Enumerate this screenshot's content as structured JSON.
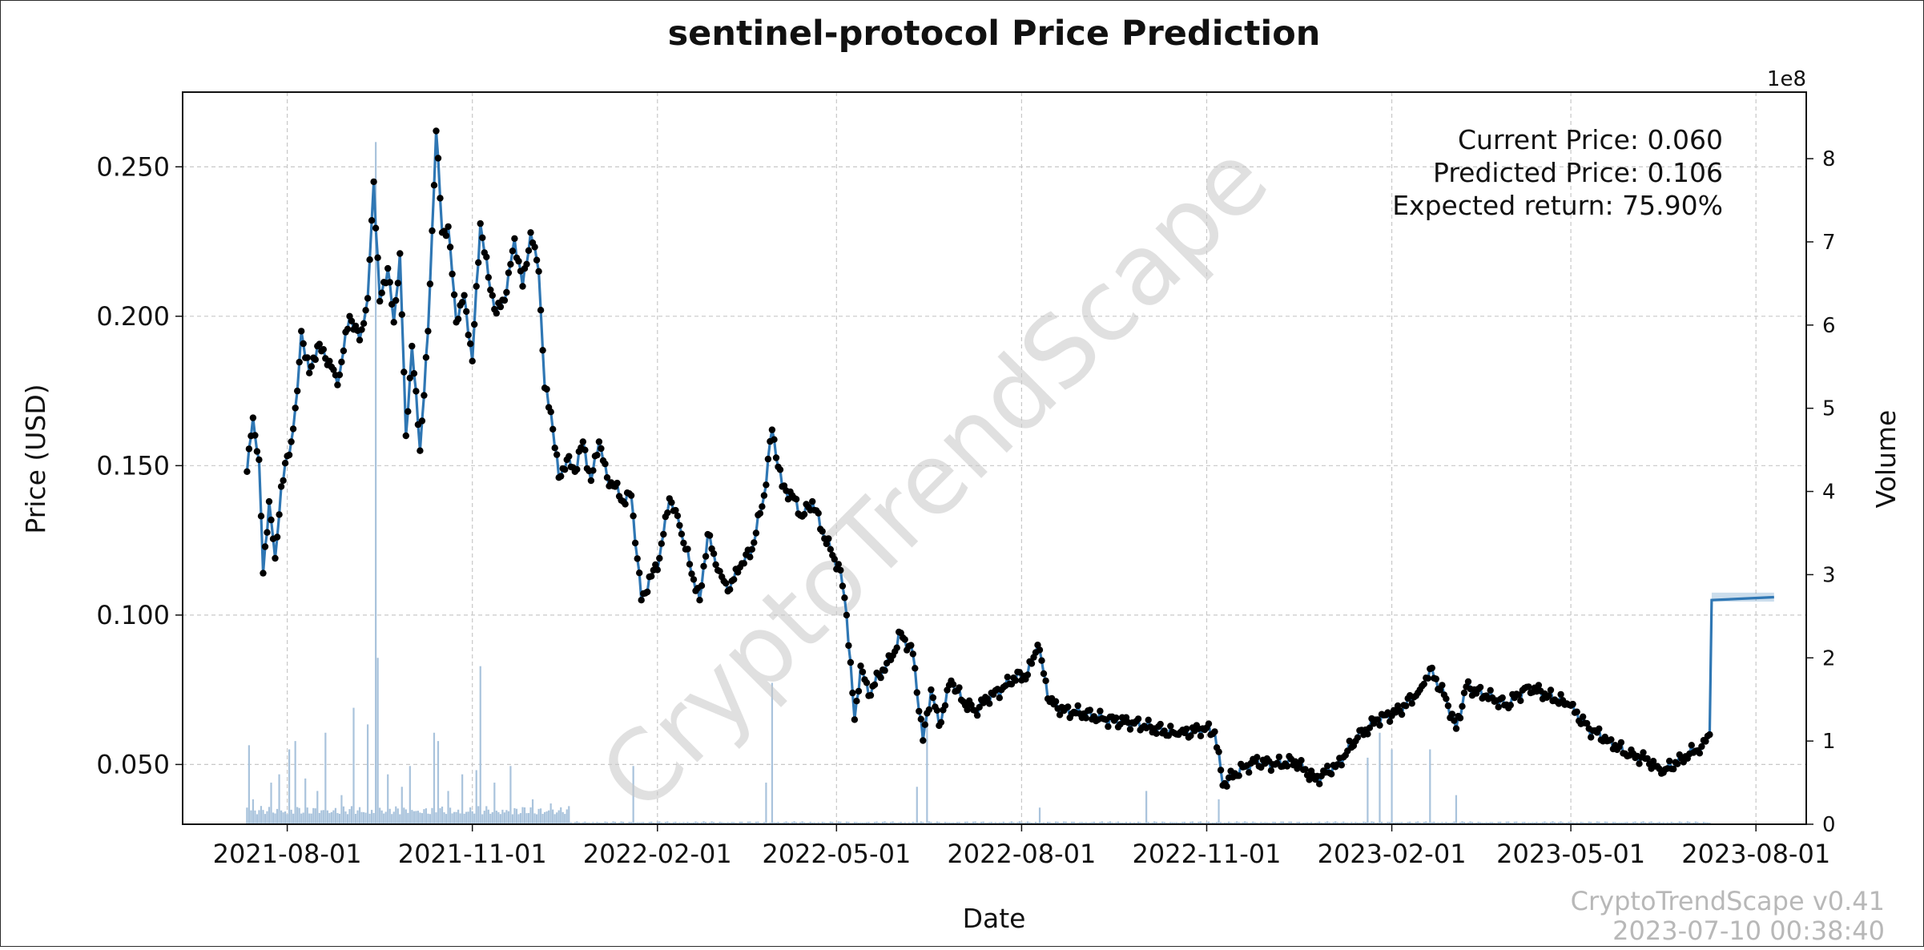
{
  "chart_data": {
    "type": "line",
    "title": "sentinel-protocol Price Prediction",
    "xlabel": "Date",
    "ylabel": "Price (USD)",
    "y2label": "Volume",
    "y2_multiplier": "1e8",
    "x_ticks": [
      "2021-08-01",
      "2021-11-01",
      "2022-02-01",
      "2022-05-01",
      "2022-08-01",
      "2022-11-01",
      "2023-02-01",
      "2023-05-01",
      "2023-08-01"
    ],
    "y_ticks": [
      "0.050",
      "0.100",
      "0.150",
      "0.200",
      "0.250"
    ],
    "y2_ticks": [
      "0",
      "1",
      "2",
      "3",
      "4",
      "5",
      "6",
      "7",
      "8"
    ],
    "xlim": [
      "2021-06-10",
      "2023-08-26"
    ],
    "ylim": [
      0.03,
      0.275
    ],
    "y2lim": [
      0,
      8.8
    ],
    "grid": true,
    "info": {
      "current_price": "Current Price: 0.060",
      "predicted_price": "Predicted Price: 0.106",
      "expected_return": "Expected return: 75.90%"
    },
    "watermark": "CryptoTrendScape",
    "footer": {
      "version": "CryptoTrendScape v0.41",
      "timestamp": "2023-07-10 00:38:40"
    },
    "colors": {
      "line": "#2f77b4",
      "points": "#000000",
      "volume": "#a9c3dc",
      "grid": "#c8c8c8"
    },
    "series": [
      {
        "type": "line_with_points",
        "anchors": [
          [
            "2021-07-12",
            0.148
          ],
          [
            "2021-07-15",
            0.166
          ],
          [
            "2021-07-18",
            0.152
          ],
          [
            "2021-07-20",
            0.114
          ],
          [
            "2021-07-23",
            0.138
          ],
          [
            "2021-07-26",
            0.119
          ],
          [
            "2021-07-29",
            0.143
          ],
          [
            "2021-08-03",
            0.158
          ],
          [
            "2021-08-06",
            0.175
          ],
          [
            "2021-08-08",
            0.195
          ],
          [
            "2021-08-12",
            0.181
          ],
          [
            "2021-08-16",
            0.19
          ],
          [
            "2021-08-22",
            0.185
          ],
          [
            "2021-08-26",
            0.177
          ],
          [
            "2021-09-01",
            0.2
          ],
          [
            "2021-09-06",
            0.192
          ],
          [
            "2021-09-10",
            0.206
          ],
          [
            "2021-09-13",
            0.245
          ],
          [
            "2021-09-16",
            0.205
          ],
          [
            "2021-09-20",
            0.216
          ],
          [
            "2021-09-23",
            0.198
          ],
          [
            "2021-09-26",
            0.221
          ],
          [
            "2021-09-29",
            0.16
          ],
          [
            "2021-10-02",
            0.19
          ],
          [
            "2021-10-06",
            0.155
          ],
          [
            "2021-10-10",
            0.195
          ],
          [
            "2021-10-14",
            0.262
          ],
          [
            "2021-10-17",
            0.228
          ],
          [
            "2021-10-20",
            0.23
          ],
          [
            "2021-10-24",
            0.198
          ],
          [
            "2021-10-28",
            0.207
          ],
          [
            "2021-11-01",
            0.185
          ],
          [
            "2021-11-05",
            0.231
          ],
          [
            "2021-11-09",
            0.213
          ],
          [
            "2021-11-13",
            0.201
          ],
          [
            "2021-11-18",
            0.208
          ],
          [
            "2021-11-22",
            0.226
          ],
          [
            "2021-11-26",
            0.21
          ],
          [
            "2021-11-30",
            0.228
          ],
          [
            "2021-12-04",
            0.215
          ],
          [
            "2021-12-07",
            0.176
          ],
          [
            "2021-12-10",
            0.168
          ],
          [
            "2021-12-14",
            0.146
          ],
          [
            "2021-12-18",
            0.152
          ],
          [
            "2021-12-22",
            0.148
          ],
          [
            "2021-12-26",
            0.158
          ],
          [
            "2021-12-30",
            0.145
          ],
          [
            "2022-01-03",
            0.158
          ],
          [
            "2022-01-07",
            0.146
          ],
          [
            "2022-01-11",
            0.143
          ],
          [
            "2022-01-15",
            0.138
          ],
          [
            "2022-01-19",
            0.14
          ],
          [
            "2022-01-24",
            0.105
          ],
          [
            "2022-01-29",
            0.113
          ],
          [
            "2022-02-02",
            0.119
          ],
          [
            "2022-02-07",
            0.139
          ],
          [
            "2022-02-12",
            0.13
          ],
          [
            "2022-02-17",
            0.117
          ],
          [
            "2022-02-22",
            0.105
          ],
          [
            "2022-02-26",
            0.127
          ],
          [
            "2022-03-03",
            0.115
          ],
          [
            "2022-03-08",
            0.108
          ],
          [
            "2022-03-14",
            0.116
          ],
          [
            "2022-03-20",
            0.122
          ],
          [
            "2022-03-26",
            0.14
          ],
          [
            "2022-03-30",
            0.162
          ],
          [
            "2022-04-04",
            0.143
          ],
          [
            "2022-04-09",
            0.14
          ],
          [
            "2022-04-14",
            0.133
          ],
          [
            "2022-04-19",
            0.138
          ],
          [
            "2022-04-24",
            0.128
          ],
          [
            "2022-04-29",
            0.12
          ],
          [
            "2022-05-03",
            0.115
          ],
          [
            "2022-05-06",
            0.1
          ],
          [
            "2022-05-10",
            0.065
          ],
          [
            "2022-05-13",
            0.083
          ],
          [
            "2022-05-17",
            0.073
          ],
          [
            "2022-05-22",
            0.08
          ],
          [
            "2022-05-28",
            0.085
          ],
          [
            "2022-06-02",
            0.094
          ],
          [
            "2022-06-08",
            0.087
          ],
          [
            "2022-06-13",
            0.058
          ],
          [
            "2022-06-17",
            0.075
          ],
          [
            "2022-06-21",
            0.063
          ],
          [
            "2022-06-27",
            0.078
          ],
          [
            "2022-07-03",
            0.071
          ],
          [
            "2022-07-09",
            0.068
          ],
          [
            "2022-07-15",
            0.072
          ],
          [
            "2022-07-22",
            0.075
          ],
          [
            "2022-07-28",
            0.079
          ],
          [
            "2022-08-04",
            0.08
          ],
          [
            "2022-08-09",
            0.09
          ],
          [
            "2022-08-15",
            0.071
          ],
          [
            "2022-08-22",
            0.068
          ],
          [
            "2022-09-01",
            0.067
          ],
          [
            "2022-09-12",
            0.065
          ],
          [
            "2022-09-25",
            0.064
          ],
          [
            "2022-10-06",
            0.062
          ],
          [
            "2022-10-18",
            0.06
          ],
          [
            "2022-10-30",
            0.062
          ],
          [
            "2022-11-05",
            0.061
          ],
          [
            "2022-11-09",
            0.043
          ],
          [
            "2022-11-15",
            0.047
          ],
          [
            "2022-11-25",
            0.051
          ],
          [
            "2022-12-05",
            0.05
          ],
          [
            "2022-12-15",
            0.051
          ],
          [
            "2022-12-25",
            0.045
          ],
          [
            "2023-01-05",
            0.05
          ],
          [
            "2023-01-15",
            0.059
          ],
          [
            "2023-01-25",
            0.065
          ],
          [
            "2023-02-05",
            0.068
          ],
          [
            "2023-02-15",
            0.075
          ],
          [
            "2023-02-20",
            0.082
          ],
          [
            "2023-02-28",
            0.072
          ],
          [
            "2023-03-05",
            0.062
          ],
          [
            "2023-03-10",
            0.076
          ],
          [
            "2023-03-20",
            0.073
          ],
          [
            "2023-03-30",
            0.07
          ],
          [
            "2023-04-10",
            0.076
          ],
          [
            "2023-04-20",
            0.073
          ],
          [
            "2023-04-30",
            0.07
          ],
          [
            "2023-05-10",
            0.062
          ],
          [
            "2023-05-20",
            0.058
          ],
          [
            "2023-05-30",
            0.053
          ],
          [
            "2023-06-08",
            0.052
          ],
          [
            "2023-06-15",
            0.047
          ],
          [
            "2023-06-25",
            0.052
          ],
          [
            "2023-07-05",
            0.056
          ],
          [
            "2023-07-09",
            0.06
          ]
        ]
      },
      {
        "type": "forecast",
        "anchors": [
          [
            "2023-07-09",
            0.06
          ],
          [
            "2023-07-10",
            0.105
          ],
          [
            "2023-08-10",
            0.106
          ]
        ]
      },
      {
        "type": "volume_bars",
        "anchors": [
          [
            "2021-07-12",
            0.2
          ],
          [
            "2021-07-13",
            0.95
          ],
          [
            "2021-07-15",
            0.3
          ],
          [
            "2021-07-24",
            0.5
          ],
          [
            "2021-07-28",
            0.6
          ],
          [
            "2021-08-02",
            0.9
          ],
          [
            "2021-08-05",
            1.0
          ],
          [
            "2021-08-10",
            0.55
          ],
          [
            "2021-08-16",
            0.4
          ],
          [
            "2021-08-20",
            1.1
          ],
          [
            "2021-08-28",
            0.35
          ],
          [
            "2021-09-03",
            1.4
          ],
          [
            "2021-09-10",
            1.2
          ],
          [
            "2021-09-14",
            8.2
          ],
          [
            "2021-09-15",
            2.0
          ],
          [
            "2021-09-20",
            0.6
          ],
          [
            "2021-09-27",
            0.45
          ],
          [
            "2021-10-01",
            0.7
          ],
          [
            "2021-10-13",
            1.1
          ],
          [
            "2021-10-15",
            1.0
          ],
          [
            "2021-10-20",
            0.4
          ],
          [
            "2021-10-27",
            0.6
          ],
          [
            "2021-11-03",
            0.65
          ],
          [
            "2021-11-05",
            1.9
          ],
          [
            "2021-11-12",
            0.5
          ],
          [
            "2021-11-20",
            0.7
          ],
          [
            "2021-12-01",
            0.3
          ],
          [
            "2021-12-10",
            0.25
          ],
          [
            "2022-01-20",
            0.7
          ],
          [
            "2022-03-30",
            1.7
          ],
          [
            "2022-03-27",
            0.5
          ],
          [
            "2022-06-15",
            1.3
          ],
          [
            "2022-06-10",
            0.45
          ],
          [
            "2022-08-10",
            0.2
          ],
          [
            "2022-10-02",
            0.4
          ],
          [
            "2022-11-07",
            0.3
          ],
          [
            "2023-01-20",
            0.8
          ],
          [
            "2023-01-26",
            1.1
          ],
          [
            "2023-02-01",
            0.9
          ],
          [
            "2023-02-20",
            0.9
          ],
          [
            "2023-03-05",
            0.35
          ]
        ]
      }
    ]
  }
}
